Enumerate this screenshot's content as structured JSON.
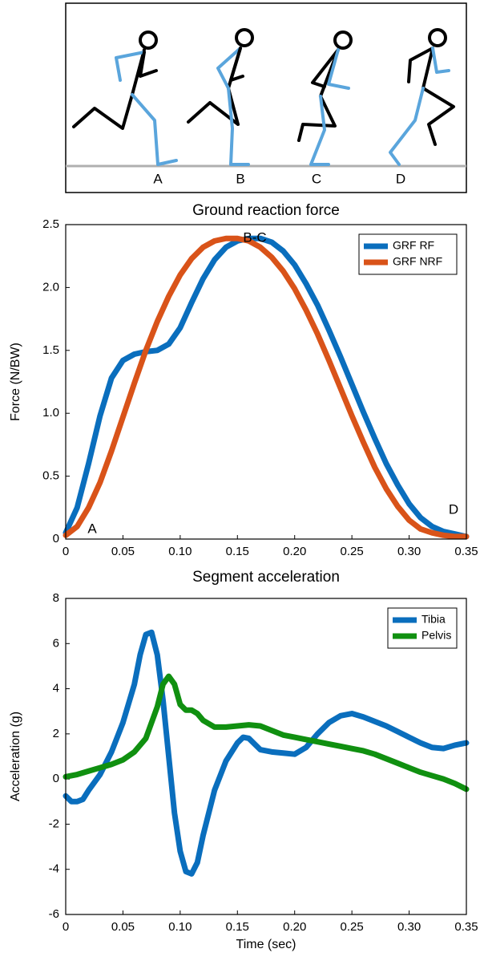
{
  "illustration": {
    "labels": [
      "A",
      "B",
      "C",
      "D"
    ]
  },
  "chart_data": [
    {
      "type": "line",
      "title": "Ground reaction force",
      "ylabel": "Force (N/BW)",
      "xlim": [
        0,
        0.35
      ],
      "ylim": [
        0,
        2.5
      ],
      "xticks": [
        0,
        0.05,
        {
          "value": 0.1,
          "label": "0.10"
        },
        0.15,
        {
          "value": 0.2,
          "label": "0.20"
        },
        0.25,
        {
          "value": 0.3,
          "label": "0.30"
        },
        0.35
      ],
      "yticks": [
        0,
        0.5,
        {
          "value": 1,
          "label": "1.0"
        },
        1.5,
        {
          "value": 2,
          "label": "2.0"
        },
        2.5
      ],
      "legend": "upper right",
      "annotations": [
        "A",
        "B-C",
        "D"
      ],
      "series": [
        {
          "name": "GRF RF",
          "color": "#0a6ebd",
          "x": [
            0,
            0.01,
            0.02,
            0.03,
            0.04,
            0.05,
            0.06,
            0.07,
            0.08,
            0.09,
            0.1,
            0.11,
            0.12,
            0.13,
            0.14,
            0.15,
            0.16,
            0.17,
            0.18,
            0.19,
            0.2,
            0.21,
            0.22,
            0.23,
            0.24,
            0.25,
            0.26,
            0.27,
            0.28,
            0.29,
            0.3,
            0.31,
            0.32,
            0.33,
            0.34,
            0.35
          ],
          "values": [
            0.05,
            0.25,
            0.6,
            0.98,
            1.28,
            1.42,
            1.47,
            1.49,
            1.5,
            1.55,
            1.68,
            1.88,
            2.07,
            2.22,
            2.32,
            2.37,
            2.39,
            2.39,
            2.36,
            2.29,
            2.18,
            2.03,
            1.86,
            1.66,
            1.45,
            1.23,
            1.01,
            0.8,
            0.6,
            0.43,
            0.28,
            0.17,
            0.1,
            0.06,
            0.04,
            0.02
          ]
        },
        {
          "name": "GRF NRF",
          "color": "#d95319",
          "x": [
            0,
            0.01,
            0.02,
            0.03,
            0.04,
            0.05,
            0.06,
            0.07,
            0.08,
            0.09,
            0.1,
            0.11,
            0.12,
            0.13,
            0.14,
            0.15,
            0.16,
            0.17,
            0.18,
            0.19,
            0.2,
            0.21,
            0.22,
            0.23,
            0.24,
            0.25,
            0.26,
            0.27,
            0.28,
            0.29,
            0.3,
            0.31,
            0.32,
            0.33,
            0.34,
            0.35
          ],
          "values": [
            0.03,
            0.1,
            0.25,
            0.45,
            0.7,
            0.97,
            1.24,
            1.5,
            1.73,
            1.93,
            2.1,
            2.23,
            2.32,
            2.37,
            2.39,
            2.39,
            2.37,
            2.32,
            2.24,
            2.13,
            1.99,
            1.82,
            1.63,
            1.42,
            1.2,
            0.98,
            0.77,
            0.57,
            0.4,
            0.26,
            0.15,
            0.08,
            0.05,
            0.03,
            0.02,
            0.02
          ]
        }
      ]
    },
    {
      "type": "line",
      "title": "Segment acceleration",
      "xlabel": "Time (sec)",
      "ylabel": "Acceleration (g)",
      "xlim": [
        0,
        0.35
      ],
      "ylim": [
        -6,
        8
      ],
      "xticks": [
        0,
        0.05,
        {
          "value": 0.1,
          "label": "0.10"
        },
        0.15,
        {
          "value": 0.2,
          "label": "0.20"
        },
        0.25,
        {
          "value": 0.3,
          "label": "0.30"
        },
        0.35
      ],
      "yticks": [
        -6,
        -4,
        -2,
        0,
        2,
        4,
        6,
        8
      ],
      "legend": "upper right",
      "series": [
        {
          "name": "Tibia",
          "color": "#0a6ebd",
          "x": [
            0,
            0.005,
            0.01,
            0.015,
            0.02,
            0.03,
            0.04,
            0.05,
            0.06,
            0.065,
            0.07,
            0.075,
            0.08,
            0.085,
            0.09,
            0.095,
            0.1,
            0.105,
            0.11,
            0.115,
            0.12,
            0.13,
            0.14,
            0.15,
            0.155,
            0.16,
            0.17,
            0.18,
            0.19,
            0.2,
            0.21,
            0.22,
            0.23,
            0.24,
            0.25,
            0.26,
            0.27,
            0.28,
            0.29,
            0.3,
            0.31,
            0.32,
            0.33,
            0.34,
            0.35
          ],
          "values": [
            -0.75,
            -1,
            -1,
            -0.9,
            -0.5,
            0.2,
            1.2,
            2.5,
            4.2,
            5.5,
            6.4,
            6.5,
            5.5,
            3.5,
            1,
            -1.5,
            -3.2,
            -4.1,
            -4.2,
            -3.7,
            -2.5,
            -0.5,
            0.8,
            1.6,
            1.85,
            1.8,
            1.3,
            1.2,
            1.15,
            1.1,
            1.4,
            2,
            2.5,
            2.8,
            2.9,
            2.75,
            2.55,
            2.35,
            2.1,
            1.85,
            1.6,
            1.4,
            1.35,
            1.5,
            1.6
          ]
        },
        {
          "name": "Pelvis",
          "color": "#109010",
          "x": [
            0,
            0.01,
            0.02,
            0.03,
            0.04,
            0.05,
            0.06,
            0.07,
            0.08,
            0.085,
            0.09,
            0.095,
            0.1,
            0.105,
            0.11,
            0.115,
            0.12,
            0.13,
            0.14,
            0.15,
            0.16,
            0.17,
            0.18,
            0.19,
            0.2,
            0.21,
            0.22,
            0.23,
            0.24,
            0.25,
            0.26,
            0.27,
            0.28,
            0.29,
            0.3,
            0.31,
            0.32,
            0.33,
            0.34,
            0.35
          ],
          "values": [
            0.1,
            0.2,
            0.35,
            0.5,
            0.65,
            0.85,
            1.2,
            1.8,
            3.2,
            4.2,
            4.55,
            4.2,
            3.3,
            3.05,
            3.05,
            2.9,
            2.6,
            2.3,
            2.3,
            2.35,
            2.4,
            2.35,
            2.15,
            1.95,
            1.85,
            1.75,
            1.65,
            1.55,
            1.45,
            1.35,
            1.25,
            1.1,
            0.9,
            0.7,
            0.5,
            0.3,
            0.15,
            0,
            -0.2,
            -0.45
          ]
        }
      ]
    }
  ]
}
